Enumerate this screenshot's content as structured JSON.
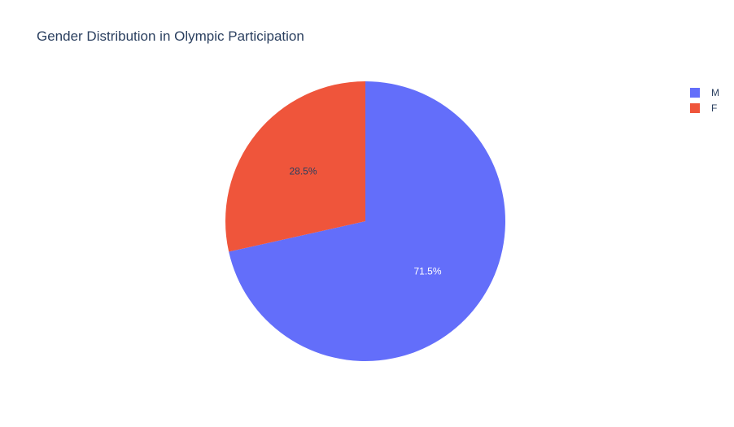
{
  "chart_data": {
    "type": "pie",
    "title": "Gender Distribution in Olympic Participation",
    "categories": [
      "M",
      "F"
    ],
    "values": [
      71.5,
      28.5
    ],
    "labels": [
      "71.5%",
      "28.5%"
    ],
    "colors": [
      "#636efa",
      "#ef553b"
    ],
    "label_colors": [
      "#ffffff",
      "#2a3f5f"
    ],
    "direction": "clockwise",
    "legend_position": "top-right"
  }
}
